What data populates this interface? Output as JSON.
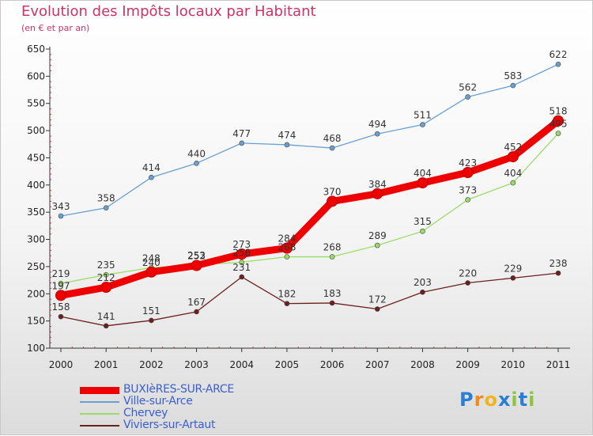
{
  "header": {
    "title": "Evolution des Impôts locaux par Habitant",
    "subtitle": "(en € et par an)"
  },
  "chart_data": {
    "type": "line",
    "x": [
      "2000",
      "2001",
      "2002",
      "2003",
      "2004",
      "2005",
      "2006",
      "2007",
      "2008",
      "2009",
      "2010",
      "2011"
    ],
    "ylim": [
      100,
      650
    ],
    "yticks": [
      100,
      150,
      200,
      250,
      300,
      350,
      400,
      450,
      500,
      550,
      600,
      650
    ],
    "grid": "none",
    "legend_position": "bottom-left",
    "series": [
      {
        "name": "BUXIèRES-SUR-ARCE",
        "color": "#ee0000",
        "values": [
          197,
          212,
          240,
          252,
          273,
          284,
          370,
          384,
          404,
          423,
          452,
          518
        ]
      },
      {
        "name": "Ville-sur-Arce",
        "color": "#6aa0d0",
        "values": [
          343,
          358,
          414,
          440,
          477,
          474,
          468,
          494,
          511,
          562,
          583,
          622
        ]
      },
      {
        "name": "Chervey",
        "color": "#99dd66",
        "values": [
          219,
          235,
          248,
          253,
          258,
          268,
          268,
          289,
          315,
          373,
          404,
          495
        ]
      },
      {
        "name": "Viviers-sur-Artaut",
        "color": "#6b1f1f",
        "values": [
          158,
          141,
          151,
          167,
          231,
          182,
          183,
          172,
          203,
          220,
          229,
          238
        ]
      }
    ]
  },
  "logo": {
    "letters": [
      "P",
      "r",
      "o",
      "x",
      "i",
      "t",
      "i"
    ],
    "colors": [
      "#2a7fd4",
      "#f08a1c",
      "#f0b51c",
      "#2a7fd4",
      "#8cc63f",
      "#2a7fd4",
      "#8cc63f"
    ]
  }
}
